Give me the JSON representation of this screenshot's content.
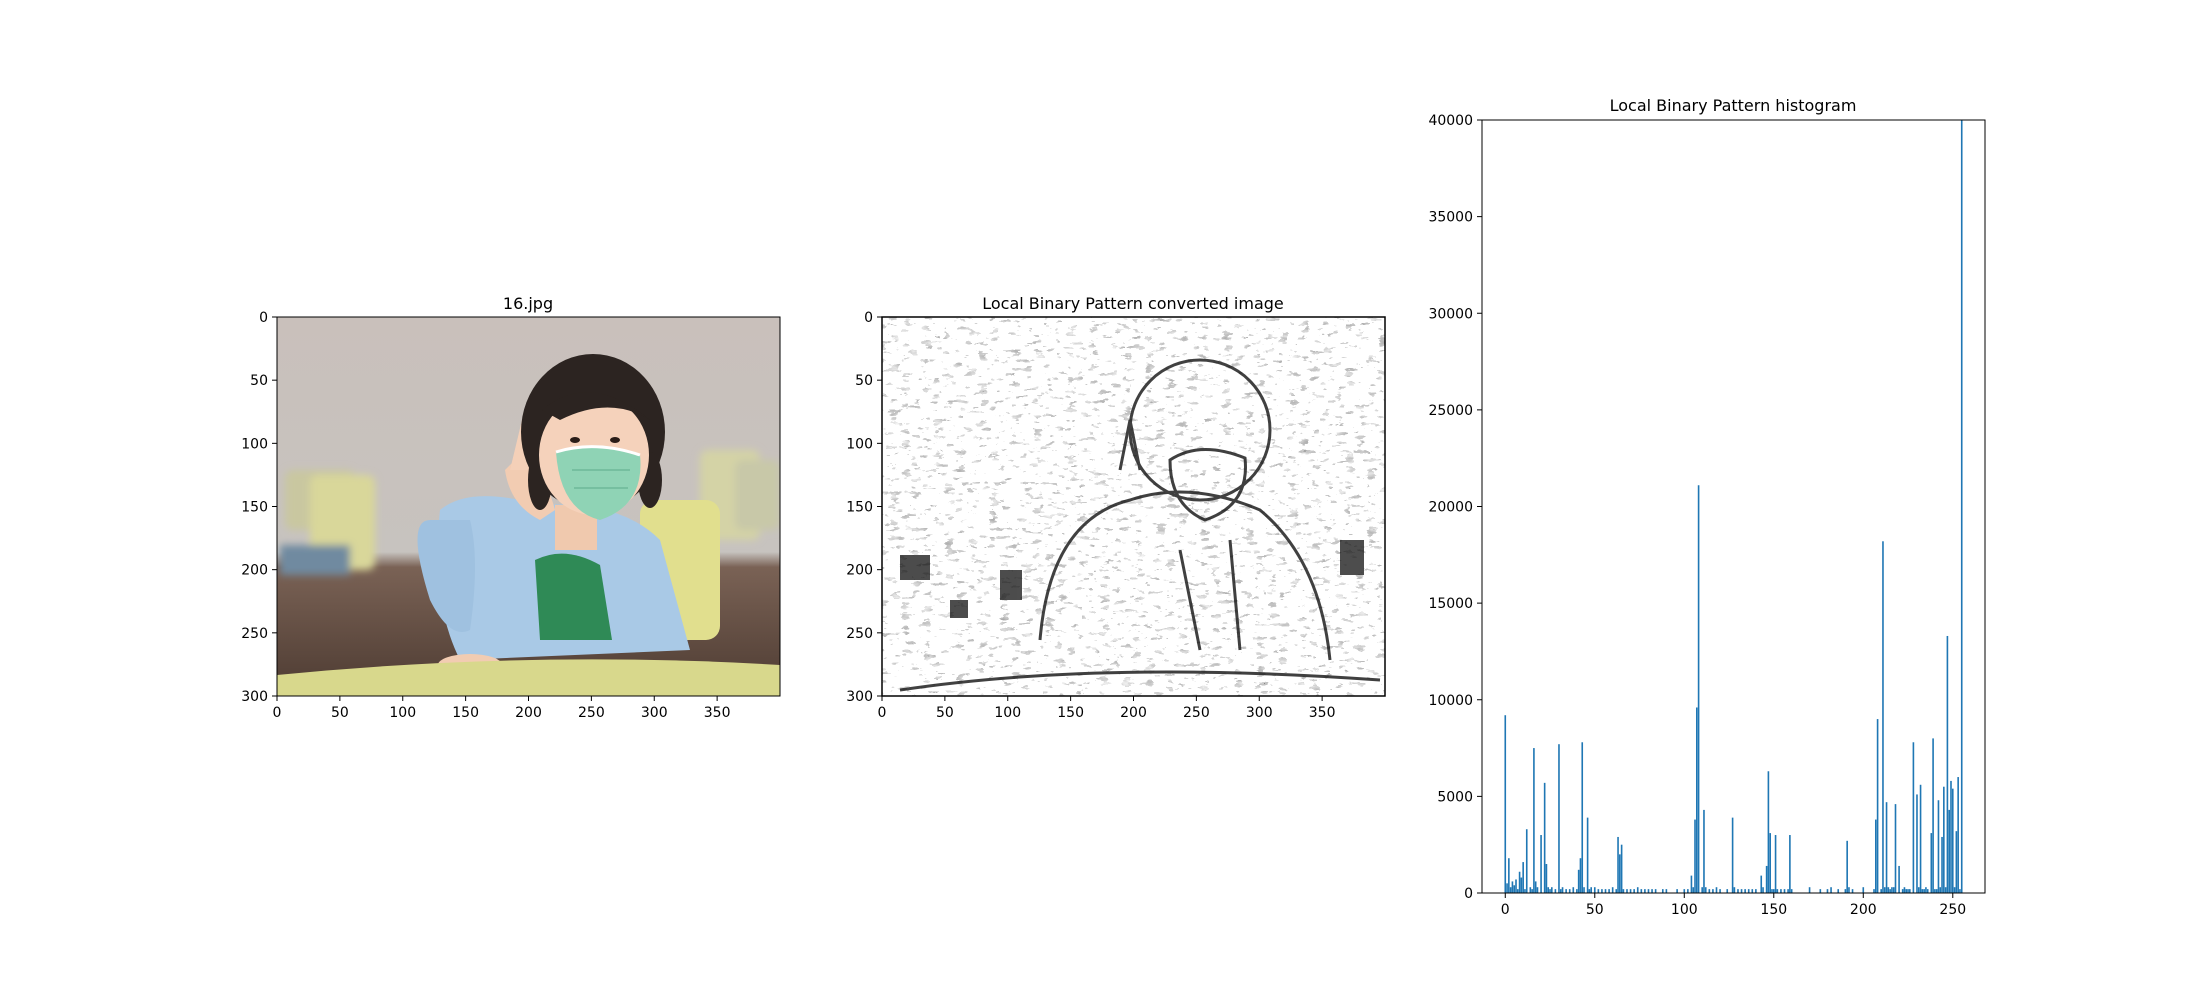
{
  "figure": {
    "panels": [
      {
        "title": "16.jpg",
        "kind": "image",
        "x_ticks": [
          "0",
          "50",
          "100",
          "150",
          "200",
          "250",
          "300",
          "350"
        ],
        "y_ticks": [
          "0",
          "50",
          "100",
          "150",
          "200",
          "250",
          "300"
        ]
      },
      {
        "title": "Local Binary Pattern converted image",
        "kind": "image",
        "x_ticks": [
          "0",
          "50",
          "100",
          "150",
          "200",
          "250",
          "300",
          "350"
        ],
        "y_ticks": [
          "0",
          "50",
          "100",
          "150",
          "200",
          "250",
          "300"
        ]
      },
      {
        "title": "Local Binary Pattern histogram",
        "kind": "bar",
        "x_ticks": [
          "0",
          "50",
          "100",
          "150",
          "200",
          "250"
        ],
        "y_ticks": [
          "0",
          "5000",
          "10000",
          "15000",
          "20000",
          "25000",
          "30000",
          "35000",
          "40000"
        ]
      }
    ],
    "colors": {
      "bar": "#1f77b4",
      "axis": "#000000"
    },
    "image_scene": {
      "subject": "girl wearing face mask raising one finger",
      "colors": {
        "wall": "#c8c2bd",
        "floor": "#5e4a40",
        "table": "#d7d78a",
        "cardigan": "#a9c8e6",
        "mask": "#8ed4b4",
        "shirt": "#2f8a55",
        "chair": "#e2e08a",
        "skin": "#f3cdb4",
        "hair": "#2b2320"
      }
    }
  },
  "chart_data": [
    {
      "type": "image",
      "title": "16.jpg",
      "xlim": [
        0,
        400
      ],
      "ylim": [
        300,
        0
      ]
    },
    {
      "type": "image",
      "title": "Local Binary Pattern converted image",
      "xlim": [
        0,
        400
      ],
      "ylim": [
        300,
        0
      ]
    },
    {
      "type": "bar",
      "title": "Local Binary Pattern histogram",
      "xlabel": "",
      "ylabel": "",
      "xlim": [
        -13,
        268
      ],
      "ylim": [
        0,
        40000
      ],
      "grid": false,
      "x": [
        0,
        1,
        2,
        3,
        4,
        5,
        6,
        7,
        8,
        9,
        10,
        11,
        12,
        14,
        15,
        16,
        17,
        18,
        20,
        22,
        23,
        24,
        25,
        26,
        28,
        30,
        31,
        32,
        34,
        36,
        38,
        40,
        41,
        42,
        43,
        44,
        46,
        47,
        48,
        50,
        52,
        54,
        56,
        58,
        60,
        62,
        63,
        64,
        65,
        66,
        68,
        70,
        72,
        74,
        76,
        78,
        80,
        82,
        84,
        88,
        90,
        96,
        100,
        102,
        104,
        105,
        106,
        107,
        108,
        110,
        111,
        112,
        114,
        116,
        118,
        120,
        124,
        127,
        128,
        130,
        132,
        134,
        136,
        138,
        140,
        143,
        144,
        146,
        147,
        148,
        149,
        150,
        151,
        152,
        154,
        156,
        158,
        159,
        160,
        170,
        176,
        180,
        182,
        186,
        190,
        191,
        192,
        194,
        200,
        206,
        207,
        208,
        210,
        211,
        212,
        213,
        214,
        215,
        216,
        217,
        218,
        220,
        222,
        223,
        224,
        225,
        226,
        228,
        230,
        231,
        232,
        233,
        234,
        235,
        236,
        238,
        239,
        240,
        241,
        242,
        243,
        244,
        245,
        246,
        247,
        248,
        249,
        250,
        251,
        252,
        253,
        254,
        255
      ],
      "values": [
        9200,
        500,
        1800,
        300,
        600,
        400,
        700,
        200,
        1100,
        800,
        1600,
        200,
        3300,
        300,
        200,
        7500,
        600,
        300,
        3000,
        5700,
        1500,
        300,
        200,
        300,
        200,
        7700,
        200,
        300,
        200,
        200,
        300,
        200,
        1200,
        1800,
        7800,
        300,
        3900,
        200,
        300,
        300,
        200,
        200,
        200,
        200,
        300,
        200,
        2900,
        2000,
        2500,
        200,
        200,
        200,
        200,
        300,
        200,
        200,
        200,
        200,
        200,
        200,
        200,
        200,
        200,
        200,
        900,
        300,
        3800,
        9600,
        21100,
        300,
        4300,
        300,
        200,
        200,
        300,
        200,
        200,
        3900,
        300,
        200,
        200,
        200,
        200,
        200,
        200,
        900,
        300,
        1400,
        6300,
        3100,
        200,
        200,
        3000,
        200,
        200,
        200,
        200,
        3000,
        200,
        300,
        200,
        200,
        300,
        200,
        200,
        2700,
        300,
        200,
        300,
        200,
        3800,
        9000,
        200,
        18200,
        300,
        4700,
        300,
        200,
        300,
        300,
        4600,
        1400,
        200,
        300,
        200,
        200,
        200,
        7800,
        5100,
        300,
        5600,
        200,
        200,
        300,
        200,
        3100,
        8000,
        200,
        200,
        4800,
        300,
        2900,
        5500,
        300,
        13300,
        4300,
        5800,
        5400,
        300,
        3200,
        6000,
        200,
        40000
      ]
    }
  ]
}
